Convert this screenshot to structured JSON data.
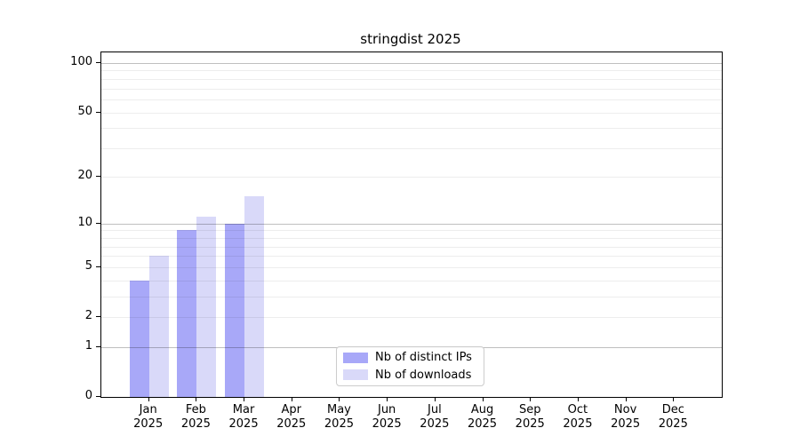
{
  "chart_data": {
    "type": "bar",
    "title": "stringdist 2025",
    "categories": [
      "Jan 2025",
      "Feb 2025",
      "Mar 2025",
      "Apr 2025",
      "May 2025",
      "Jun 2025",
      "Jul 2025",
      "Aug 2025",
      "Sep 2025",
      "Oct 2025",
      "Nov 2025",
      "Dec 2025"
    ],
    "series": [
      {
        "name": "Nb of distinct IPs",
        "color": "#a8a8f8",
        "values": [
          4,
          9,
          10,
          null,
          null,
          null,
          null,
          null,
          null,
          null,
          null,
          null
        ]
      },
      {
        "name": "Nb of downloads",
        "color": "#d9d9f9",
        "values": [
          6,
          11,
          15,
          null,
          null,
          null,
          null,
          null,
          null,
          null,
          null,
          null
        ]
      }
    ],
    "xlabel": "",
    "ylabel": "",
    "yscale": "log1p",
    "ylim": [
      0,
      116
    ],
    "yticks": [
      0,
      1,
      2,
      5,
      10,
      20,
      50,
      100
    ],
    "major_gridlines": [
      1,
      10,
      100
    ],
    "minor_gridlines": [
      2,
      3,
      4,
      5,
      6,
      7,
      8,
      9,
      20,
      30,
      40,
      50,
      60,
      70,
      80,
      90
    ],
    "grid": "on",
    "legend_position": "lower center",
    "colors": {
      "bar_distinct_ips": "#a8a8f8",
      "bar_downloads": "#d9d9f9",
      "major_grid": "rgba(0,0,0,0.25)",
      "minor_grid": "rgba(0,0,0,0.07)",
      "spine": "#000000",
      "text": "#000000",
      "legend_border": "#cccccc"
    }
  }
}
